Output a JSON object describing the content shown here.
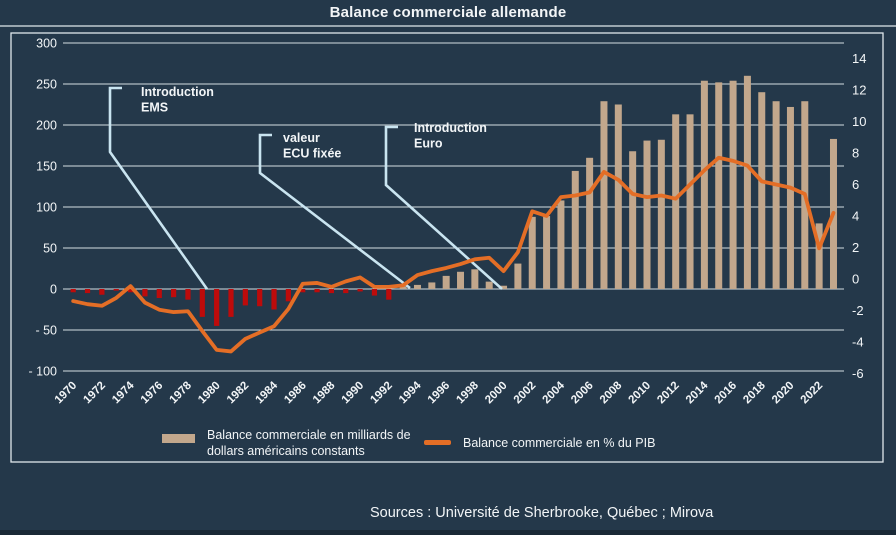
{
  "title": "Balance commerciale allemande",
  "source_line": "Sources : Université de Sherbrooke, Québec ; Mirova",
  "legend": {
    "bars_label": "Balance commerciale en milliards de dollars américains constants",
    "line_label": "Balance commerciale en % du PIB"
  },
  "colors": {
    "background": "#24384a",
    "bar_positive": "#c2a78c",
    "bar_negative": "#bd0b0b",
    "line": "#e46e26",
    "annotation_line": "#c9e4f0",
    "grid": "#dfe7ec",
    "text": "#f2f5f7"
  },
  "chart_data": {
    "type": "bar+line",
    "title": "Balance commerciale allemande",
    "x": [
      1970,
      1971,
      1972,
      1973,
      1974,
      1975,
      1976,
      1977,
      1978,
      1979,
      1980,
      1981,
      1982,
      1983,
      1984,
      1985,
      1986,
      1987,
      1988,
      1989,
      1990,
      1991,
      1992,
      1993,
      1994,
      1995,
      1996,
      1997,
      1998,
      1999,
      2000,
      2001,
      2002,
      2003,
      2004,
      2005,
      2006,
      2007,
      2008,
      2009,
      2010,
      2011,
      2012,
      2013,
      2014,
      2015,
      2016,
      2017,
      2018,
      2019,
      2020,
      2021,
      2022,
      2023
    ],
    "series": [
      {
        "name": "Balance commerciale en milliards de dollars américains constants",
        "type": "bar",
        "axis": "left",
        "unit": "milliards de dollars américains constants",
        "values": [
          -4,
          -5,
          -7,
          -2,
          -4,
          -9,
          -11,
          -10,
          -13,
          -34,
          -45,
          -34,
          -20,
          -21,
          -25,
          -15,
          -4,
          -4,
          -5,
          -5,
          -3,
          -8,
          -13,
          3,
          5,
          8,
          16,
          21,
          24,
          9,
          4,
          31,
          88,
          89,
          108,
          144,
          160,
          229,
          225,
          168,
          181,
          182,
          213,
          213,
          254,
          252,
          254,
          260,
          240,
          229,
          222,
          229,
          80,
          183
        ]
      },
      {
        "name": "Balance commerciale en % du PIB",
        "type": "line",
        "axis": "right",
        "unit": "% du PIB",
        "values": [
          -1.4,
          -1.6,
          -1.7,
          -1.2,
          -0.45,
          -1.5,
          -1.95,
          -2.1,
          -2.05,
          -3.3,
          -4.5,
          -4.6,
          -3.8,
          -3.4,
          -3.0,
          -1.9,
          -0.3,
          -0.25,
          -0.5,
          -0.15,
          0.1,
          -0.5,
          -0.5,
          -0.4,
          0.25,
          0.5,
          0.7,
          0.95,
          1.25,
          1.35,
          0.5,
          1.7,
          4.3,
          4.0,
          5.2,
          5.3,
          5.5,
          6.8,
          6.3,
          5.4,
          5.2,
          5.3,
          5.1,
          6.0,
          6.9,
          7.7,
          7.5,
          7.2,
          6.2,
          6.0,
          5.8,
          5.4,
          1.95,
          4.2
        ]
      }
    ],
    "left_axis": {
      "min": -100,
      "max": 300,
      "tick_step": 50,
      "tick_labels": [
        "300",
        "250",
        "200",
        "150",
        "100",
        "50",
        "0",
        "- 50",
        "- 100"
      ]
    },
    "right_axis": {
      "min": -6,
      "max": 14,
      "tick_step": 2,
      "tick_labels": [
        "14",
        "12",
        "10",
        "8",
        "6",
        "4",
        "2",
        "0",
        "-2",
        "-4",
        "-6"
      ]
    },
    "x_tick_labels": [
      "1970",
      "1972",
      "1974",
      "1976",
      "1978",
      "1980",
      "1982",
      "1984",
      "1986",
      "1988",
      "1990",
      "1992",
      "1994",
      "1996",
      "1998",
      "2000",
      "2002",
      "2004",
      "2006",
      "2008",
      "2010",
      "2012",
      "2014",
      "2016",
      "2018",
      "2020",
      "2022"
    ],
    "grid": true,
    "legend_position": "bottom",
    "annotations": [
      {
        "lines": [
          "Introduction",
          "EMS"
        ],
        "text_x": 141,
        "text_y": 96,
        "path": [
          [
            122,
            88
          ],
          [
            110,
            88
          ],
          [
            110,
            152
          ],
          [
            207,
            289
          ]
        ]
      },
      {
        "lines": [
          "valeur",
          "ECU fixée"
        ],
        "text_x": 283,
        "text_y": 142,
        "path": [
          [
            272,
            135
          ],
          [
            260,
            135
          ],
          [
            260,
            173
          ],
          [
            410,
            288
          ]
        ]
      },
      {
        "lines": [
          "Introduction",
          "Euro"
        ],
        "text_x": 414,
        "text_y": 132,
        "path": [
          [
            398,
            127
          ],
          [
            386,
            127
          ],
          [
            386,
            185
          ],
          [
            502,
            289
          ]
        ]
      }
    ]
  }
}
